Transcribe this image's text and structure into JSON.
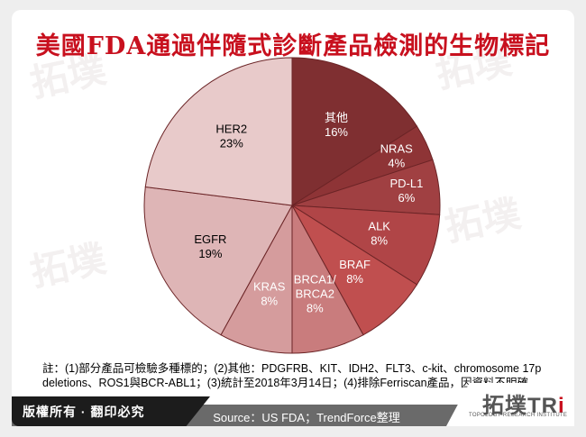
{
  "header": {
    "title": "美國FDA通過伴隨式診斷產品檢測的生物標記"
  },
  "chart_data": {
    "type": "pie",
    "title": "美國FDA通過伴隨式診斷產品檢測的生物標記",
    "start_angle": "12 o'clock, clockwise",
    "slices": [
      {
        "label": "其他",
        "value": 16,
        "pct_label": "16%",
        "color": "#7f2f31",
        "text_color": "#ffffff"
      },
      {
        "label": "NRAS",
        "value": 4,
        "pct_label": "4%",
        "color": "#8e3436",
        "text_color": "#ffffff"
      },
      {
        "label": "PD-L1",
        "value": 6,
        "pct_label": "6%",
        "color": "#a04042",
        "text_color": "#ffffff"
      },
      {
        "label": "ALK",
        "value": 8,
        "pct_label": "8%",
        "color": "#b04547",
        "text_color": "#ffffff"
      },
      {
        "label": "BRAF",
        "value": 8,
        "pct_label": "8%",
        "color": "#c04f4f",
        "text_color": "#ffffff"
      },
      {
        "label": "BRCA1/\nBRCA2",
        "value": 8,
        "pct_label": "8%",
        "color": "#c97c7d",
        "text_color": "#ffffff"
      },
      {
        "label": "KRAS",
        "value": 8,
        "pct_label": "8%",
        "color": "#d59c9d",
        "text_color": "#ffffff"
      },
      {
        "label": "EGFR",
        "value": 19,
        "pct_label": "19%",
        "color": "#deb5b6",
        "text_color": "#000000"
      },
      {
        "label": "HER2",
        "value": 23,
        "pct_label": "23%",
        "color": "#e8caca",
        "text_color": "#000000"
      }
    ]
  },
  "notes": {
    "line1": "註：(1)部分產品可檢驗多種標的；(2)其他：PDGFRB、KIT、IDH2、FLT3、c-kit、chromosome  17p",
    "line2": "deletions、ROS1與BCR-ABL1；(3)統計至2018年3月14日；(4)排除Ferriscan產品，因資料不明確。"
  },
  "footer": {
    "copyright": "版權所有 · 翻印必究",
    "source": "Source：US FDA；TrendForce整理",
    "logo_main": "拓墣TR",
    "logo_dot": "i",
    "logo_sub": "TOPOLOGY RESEARCH INSTITUTE"
  }
}
